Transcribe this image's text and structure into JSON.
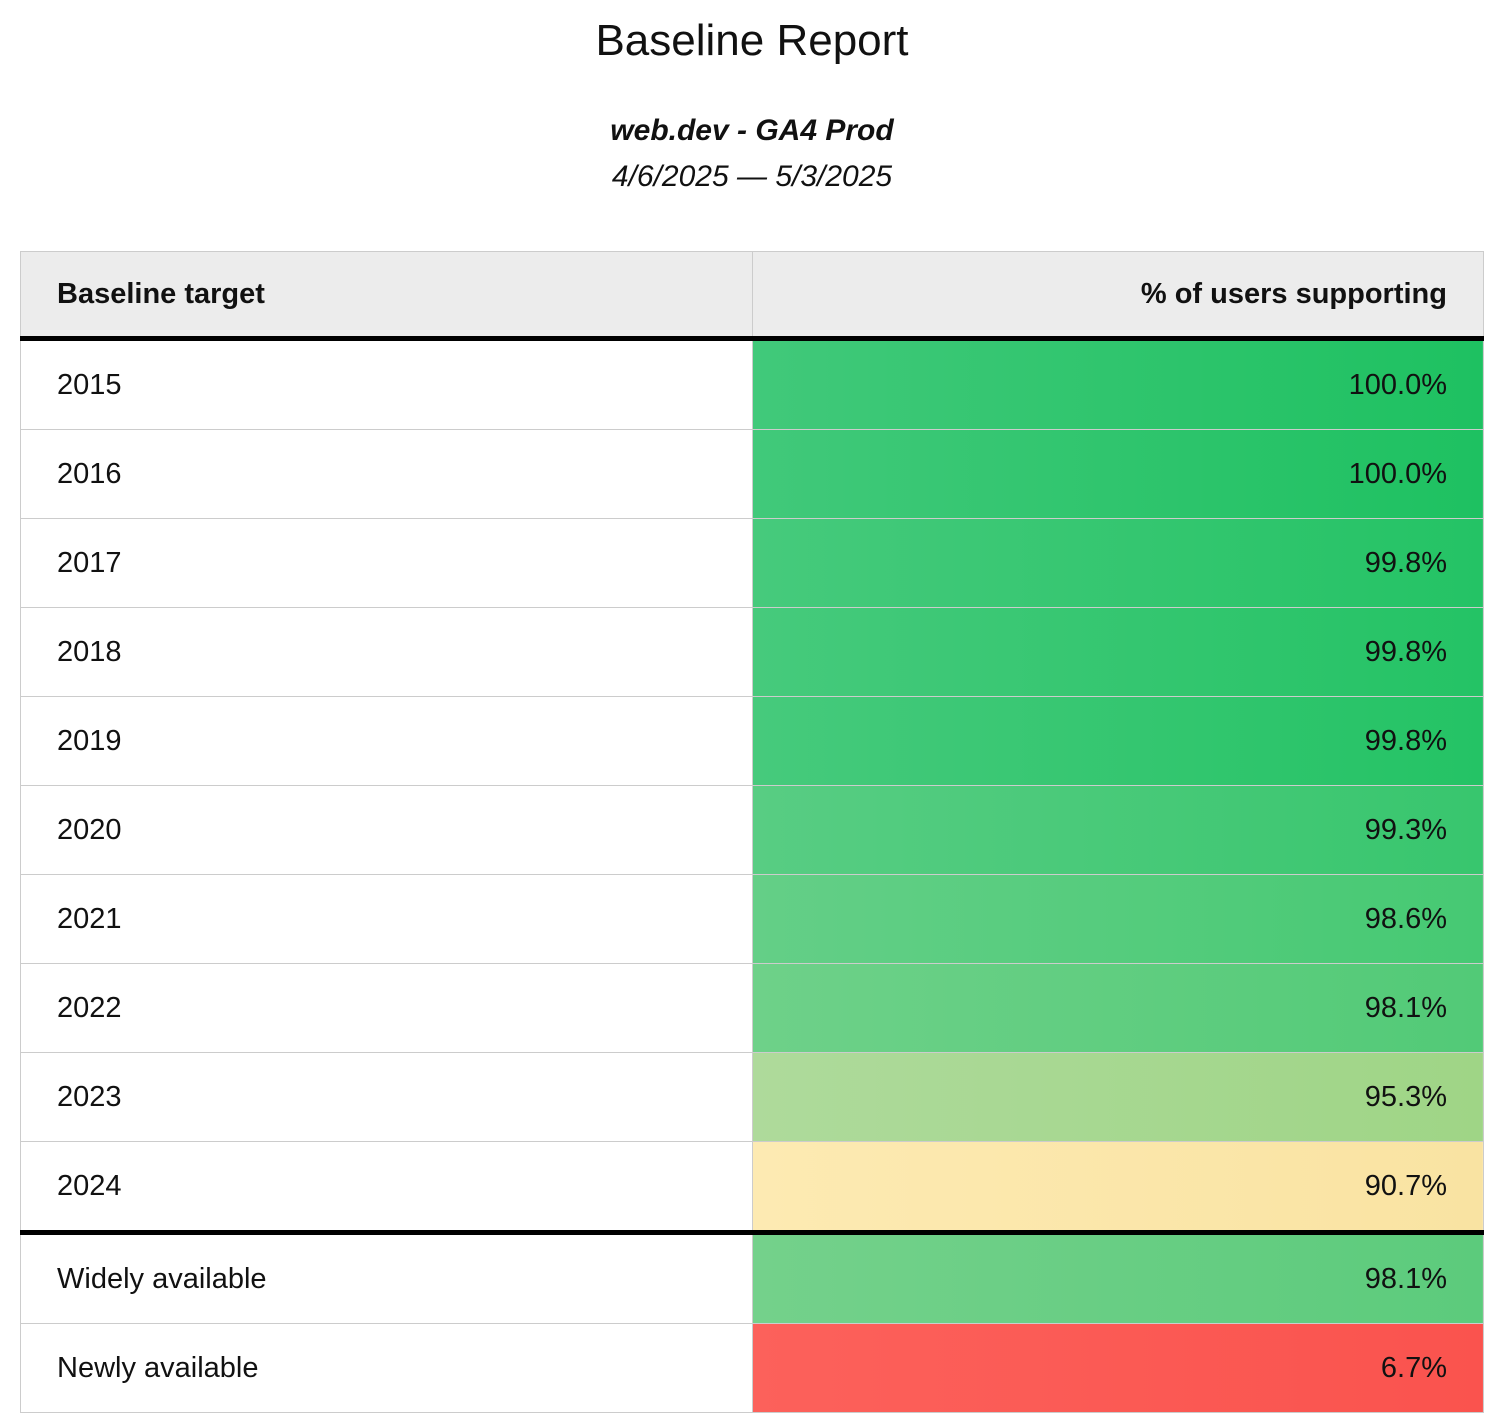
{
  "page": {
    "title": "Baseline Report",
    "subtitle": "web.dev - GA4 Prod",
    "date_range": "4/6/2025 — 5/3/2025"
  },
  "table": {
    "columns": [
      {
        "label": "Baseline target"
      },
      {
        "label": "% of users supporting"
      }
    ],
    "rows": [
      {
        "target": "2015",
        "percent": "100.0%",
        "color_left": "#41c97a",
        "color_right": "#1ec161",
        "section_start": false
      },
      {
        "target": "2016",
        "percent": "100.0%",
        "color_left": "#41c97a",
        "color_right": "#1ec161",
        "section_start": false
      },
      {
        "target": "2017",
        "percent": "99.8%",
        "color_left": "#46ca7c",
        "color_right": "#24c365",
        "section_start": false
      },
      {
        "target": "2018",
        "percent": "99.8%",
        "color_left": "#46ca7c",
        "color_right": "#24c365",
        "section_start": false
      },
      {
        "target": "2019",
        "percent": "99.8%",
        "color_left": "#46ca7c",
        "color_right": "#24c365",
        "section_start": false
      },
      {
        "target": "2020",
        "percent": "99.3%",
        "color_left": "#58cd83",
        "color_right": "#38c66e",
        "section_start": false
      },
      {
        "target": "2021",
        "percent": "98.6%",
        "color_left": "#64cf87",
        "color_right": "#46c973",
        "section_start": false
      },
      {
        "target": "2022",
        "percent": "98.1%",
        "color_left": "#6ed189",
        "color_right": "#52ca77",
        "section_start": false
      },
      {
        "target": "2023",
        "percent": "95.3%",
        "color_left": "#aeda9b",
        "color_right": "#9fd586",
        "section_start": false
      },
      {
        "target": "2024",
        "percent": "90.7%",
        "color_left": "#fdeab2",
        "color_right": "#f9e3a2",
        "section_start": false
      },
      {
        "target": "Widely available",
        "percent": "98.1%",
        "color_left": "#74d18b",
        "color_right": "#5ccb7c",
        "section_start": true
      },
      {
        "target": "Newly available",
        "percent": "6.7%",
        "color_left": "#fc615b",
        "color_right": "#fa534e",
        "section_start": false
      }
    ],
    "colors": {
      "header_bg": "#ececec",
      "row_divider": "#cccccc",
      "heavy_border": "#000000",
      "text": "#111111"
    }
  },
  "chart_data": {
    "type": "table",
    "title": "Baseline Report",
    "subtitle": "web.dev - GA4 Prod",
    "period": "4/6/2025 — 5/3/2025",
    "columns": [
      "Baseline target",
      "% of users supporting"
    ],
    "categories": [
      "2015",
      "2016",
      "2017",
      "2018",
      "2019",
      "2020",
      "2021",
      "2022",
      "2023",
      "2024",
      "Widely available",
      "Newly available"
    ],
    "values": [
      100.0,
      100.0,
      99.8,
      99.8,
      99.8,
      99.3,
      98.6,
      98.1,
      95.3,
      90.7,
      98.1,
      6.7
    ],
    "value_unit": "%",
    "color_scale": "green (high) → yellow (mid) → red (low)"
  }
}
